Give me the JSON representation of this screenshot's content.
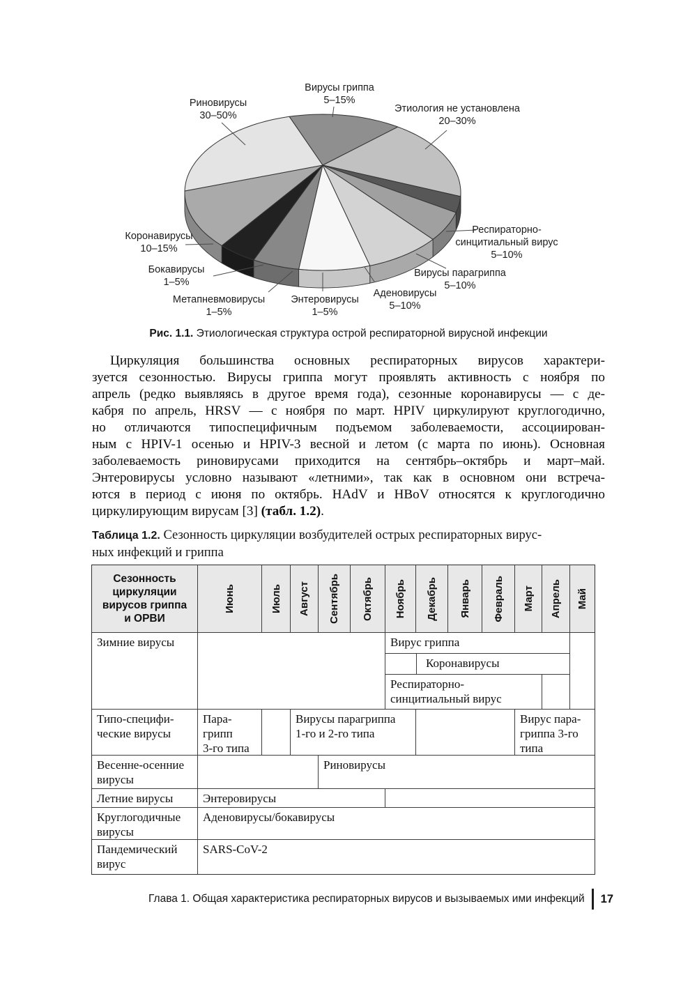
{
  "figure": {
    "caption_label": "Рис. 1.1.",
    "caption_text": "Этиологическая структура острой респираторной вирусной инфекции"
  },
  "chart_data": {
    "type": "pie",
    "style": "3d-grayscale",
    "title": "Этиологическая структура острой респираторной вирусной инфекции",
    "legend_position": "around-slices-with-leader-lines",
    "slices": [
      {
        "name": "Вирусы гриппа",
        "range": "5–15%",
        "start": -14,
        "end": 33,
        "color": "#8f8f8f"
      },
      {
        "name": "Этиология не установлена",
        "range": "20–30%",
        "start": 33,
        "end": 93,
        "color": "#c1c1c1"
      },
      {
        "name": "Респираторно-синцитиальный вирус",
        "range": "5–10%",
        "start": 93,
        "end": 105,
        "color": "#575757"
      },
      {
        "name": "Вирусы парагриппа",
        "range": "5–10%",
        "start": 105,
        "end": 127,
        "color": "#a0a0a0"
      },
      {
        "name": "Аденовирусы",
        "range": "5–10%",
        "start": 127,
        "end": 160,
        "color": "#d3d3d3"
      },
      {
        "name": "Энтеровирусы",
        "range": "1–5%",
        "start": 160,
        "end": 190,
        "color": "#f7f7f7"
      },
      {
        "name": "Метапневмовирусы",
        "range": "1–5%",
        "start": 190,
        "end": 210,
        "color": "#888888"
      },
      {
        "name": "Бокавирусы",
        "range": "1–5%",
        "start": 210,
        "end": 227,
        "color": "#212121"
      },
      {
        "name": "Коронавирусы",
        "range": "10–15%",
        "start": 227,
        "end": 271,
        "color": "#aaaaaa"
      },
      {
        "name": "Риновирусы",
        "range": "30–50%",
        "start": 271,
        "end": 346,
        "color": "#e4e4e4"
      }
    ]
  },
  "paragraph": {
    "lines": [
      "Циркуляция большинства основных респираторных вирусов характери-",
      "зуется сезонностью. Вирусы гриппа могут проявлять активность с ноября по",
      "апрель (редко выявляясь в другое время года), сезонные коронавирусы — с де-",
      "кабря по апрель, HRSV — с ноября по март. HPIV циркулируют круглогодично,",
      "но отличаются типоспецифичным подъемом заболеваемости, ассоциирован-",
      "ным с HPIV-1 осенью и HPIV-3 весной и летом (с марта по июнь). Основная",
      "заболеваемость риновирусами приходится на сентябрь–октябрь и март–май.",
      "Энтеровирусы условно называют «летними», так как в основном они встреча-",
      "ются в период с июня по октябрь. HAdV и HBoV относятся к круглогодично",
      "циркулирующим вирусам [3] (табл. 1.2)."
    ],
    "bold_ref": "(табл. 1.2)"
  },
  "table": {
    "caption_label": "Таблица 1.2.",
    "caption_line1": "Сезонность циркуляции возбудителей острых респираторных вирус-",
    "caption_line2": "ных инфекций и гриппа",
    "corner_lines": [
      "Сезонность",
      "циркуляции",
      "вирусов гриппа",
      "и ОРВИ"
    ],
    "months": [
      "Июнь",
      "Июль",
      "Август",
      "Сентябрь",
      "Октябрь",
      "Ноябрь",
      "Декабрь",
      "Январь",
      "Февраль",
      "Март",
      "Апрель",
      "Май"
    ],
    "rows": {
      "winter": {
        "label": "Зимние вирусы",
        "flu": {
          "text": "Вирус гриппа",
          "months": "Ноябрь–Апрель"
        },
        "corona": {
          "text": "Коронавирусы",
          "months": "Декабрь–Апрель"
        },
        "rsv": {
          "lines": [
            "Респираторно-",
            "синцитиальный вирус"
          ],
          "months": "Ноябрь–Март"
        }
      },
      "typespecific": {
        "label_lines": [
          "Типо-специфи-",
          "ческие вирусы"
        ],
        "pg3_lines": [
          "Пара-",
          "грипп",
          "3-го типа"
        ],
        "pg3_months": "Июнь",
        "pg12_lines": [
          "Вирусы парагриппа",
          "1-го и 2-го типа"
        ],
        "pg12_months": "Август–Ноябрь",
        "pg3s_lines": [
          "Вирус пара-",
          "гриппа 3-го",
          "типа"
        ],
        "pg3s_months": "Март–Май"
      },
      "springautumn": {
        "label_lines": [
          "Весенне-осенние",
          "вирусы"
        ],
        "rhino": {
          "text": "Риновирусы",
          "months": "Сентябрь–Май"
        }
      },
      "summer": {
        "label": "Летние вирусы",
        "entero": {
          "text": "Энтеровирусы",
          "months": "Июнь–Октябрь"
        }
      },
      "yearround": {
        "label_lines": [
          "Круглогодичные",
          "вирусы"
        ],
        "adeno": {
          "text": "Аденовирусы/бокавирусы",
          "months": "Июнь–Май"
        }
      },
      "pandemic": {
        "label_lines": [
          "Пандемический",
          "вирус"
        ],
        "sars": {
          "text": "SARS-CoV-2",
          "months": "Июнь–Май"
        }
      }
    }
  },
  "footer": {
    "text": "Глава 1. Общая характеристика респираторных вирусов и вызываемых ими инфекций",
    "page": "17"
  }
}
